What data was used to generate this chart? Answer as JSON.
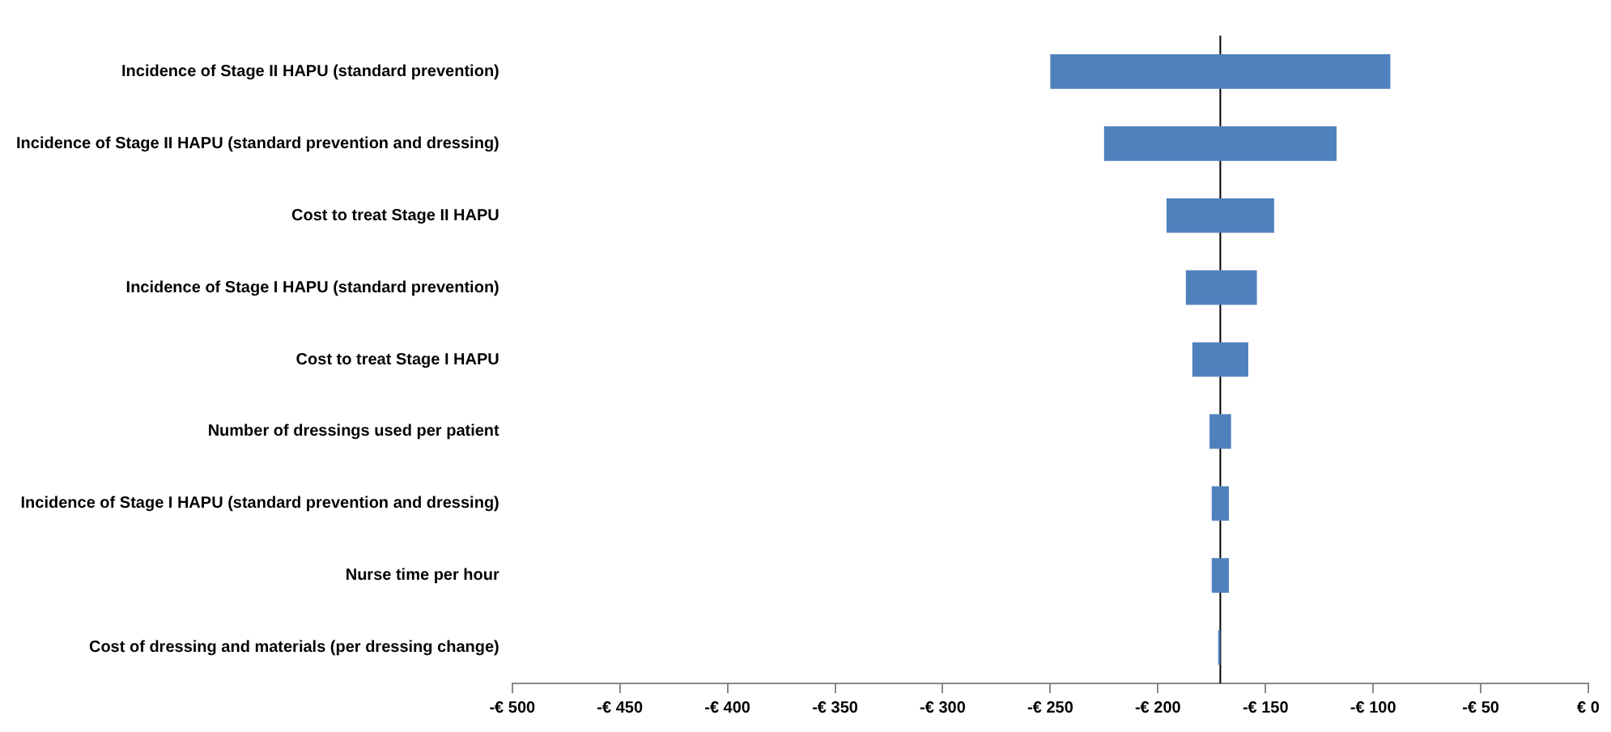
{
  "chart_data": {
    "type": "bar",
    "orientation": "horizontal",
    "categories": [
      "Incidence of Stage II HAPU (standard prevention)",
      "Incidence of Stage II HAPU (standard prevention and dressing)",
      "Cost to treat Stage II HAPU",
      "Incidence of Stage I HAPU (standard prevention)",
      "Cost to treat Stage I HAPU",
      "Number of dressings used per patient",
      "Incidence of Stage I HAPU (standard prevention and dressing)",
      "Nurse time per hour",
      "Cost of dressing and materials (per dressing change)"
    ],
    "base": [
      -250,
      -225,
      -196,
      -187,
      -184,
      -176,
      -175,
      -175,
      -172
    ],
    "values": [
      158,
      108,
      50,
      33,
      26,
      10,
      8,
      8,
      1
    ],
    "color": "#4f81bd",
    "xlim": [
      -500,
      0
    ],
    "xticks": [
      {
        "value": -500,
        "label": "-€ 500"
      },
      {
        "value": -450,
        "label": "-€ 450"
      },
      {
        "value": -400,
        "label": "-€ 400"
      },
      {
        "value": -350,
        "label": "-€ 350"
      },
      {
        "value": -300,
        "label": "-€ 300"
      },
      {
        "value": -250,
        "label": "-€ 250"
      },
      {
        "value": -200,
        "label": "-€ 200"
      },
      {
        "value": -150,
        "label": "-€ 150"
      },
      {
        "value": -100,
        "label": "-€ 100"
      },
      {
        "value": -50,
        "label": "-€ 50"
      },
      {
        "value": 0,
        "label": "€ 0"
      }
    ],
    "ref_lines": [
      {
        "axis": "x",
        "value": -171,
        "color": "#000000"
      }
    ],
    "grid": false,
    "legend": false
  }
}
